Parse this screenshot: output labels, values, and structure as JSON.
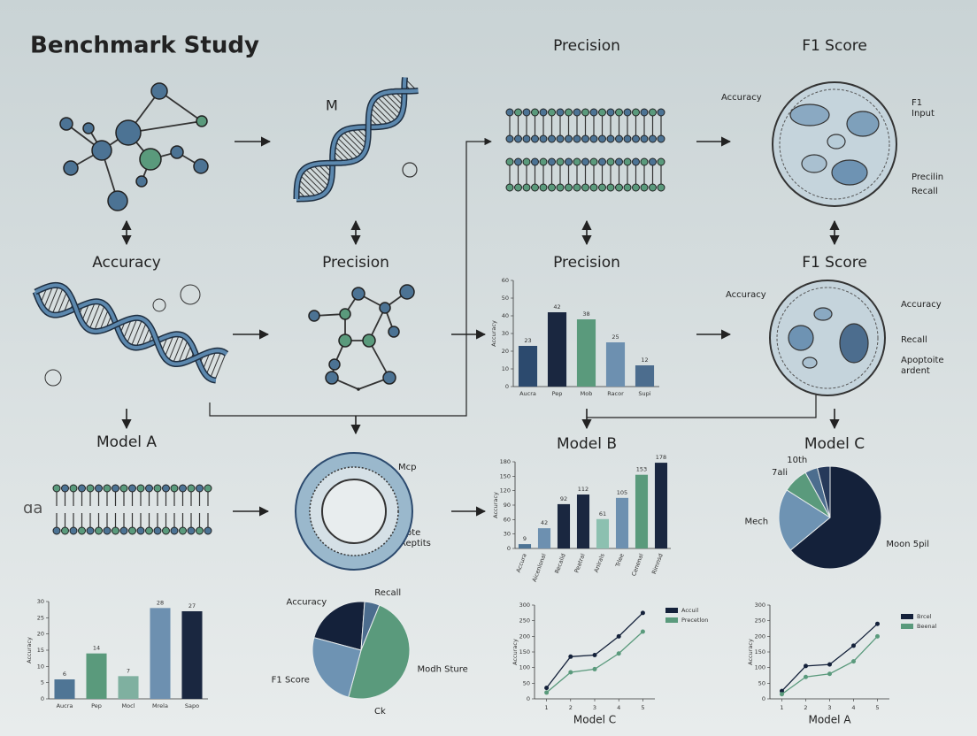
{
  "header": {
    "title": "Benchmark Study"
  },
  "labels": {
    "top_precision": "Precision",
    "top_f1": "F1 Score",
    "accuracy": "Accuracy",
    "precision_left": "Precision",
    "precision_right": "Precision",
    "f1_right": "F1 Score",
    "model_a": "Model A",
    "model_b": "Model B",
    "model_c": "Model C"
  },
  "annotations": {
    "dna_mark": "M",
    "side_mark": "ɑa",
    "cell_top": [
      "Accuracy",
      "F1",
      "Input",
      "Precilin",
      "Recall"
    ],
    "cell_mid": [
      "Accuracy",
      "Accuracy",
      "Recall",
      "Apoptoite",
      "ardent"
    ],
    "cell_membrane": [
      "Mcp",
      "Apte",
      "Reptits"
    ]
  },
  "chart_data": [
    {
      "type": "bar",
      "ylabel": "Accuracy",
      "categories": [
        "Aucra",
        "Pep",
        "Mob",
        "Racor",
        "Supi"
      ],
      "values": [
        23,
        42,
        38,
        25,
        12
      ],
      "colors": [
        "#2c4a6e",
        "#1a2740",
        "#5a9a7c",
        "#6d90b0",
        "#4c6d8e"
      ],
      "ylim": [
        0,
        60
      ],
      "yticks": [
        0,
        10,
        20,
        30,
        40,
        50,
        60
      ]
    },
    {
      "type": "bar",
      "ylabel": "Accuracy",
      "categories": [
        "Accura",
        "Aicenlonal",
        "Recalld",
        "Peatral",
        "Anlrals",
        "Trlee",
        "Cenenal",
        "Rimnsd"
      ],
      "values": [
        9,
        42,
        92,
        112,
        61,
        105,
        153,
        178
      ],
      "colors": [
        "#4c7394",
        "#6d90b0",
        "#1a2740",
        "#1a2740",
        "#8cc0b0",
        "#6d90b0",
        "#5a9a7c",
        "#1a2740"
      ],
      "ylim": [
        0,
        180
      ],
      "yticks": [
        0,
        30,
        60,
        90,
        120,
        150,
        180
      ]
    },
    {
      "type": "bar",
      "ylabel": "Accuracy",
      "categories": [
        "Aucra",
        "Pep",
        "Mocl",
        "Mrela",
        "Sapo"
      ],
      "values": [
        6,
        14,
        7,
        28,
        27
      ],
      "colors": [
        "#4f7595",
        "#5a9a7c",
        "#7fb0a0",
        "#6d90b0",
        "#1a2740"
      ],
      "ylim": [
        0,
        30
      ],
      "yticks": [
        0,
        5,
        10,
        15,
        20,
        25,
        30
      ]
    },
    {
      "type": "pie",
      "categories": [
        "Moon 5pil",
        "Mech",
        "7ali",
        "10th",
        null
      ],
      "values": [
        64,
        20,
        8,
        4,
        4
      ],
      "colors": [
        "#14213a",
        "#6e93b3",
        "#5a9a7c",
        "#4c6d8e",
        "#26395a"
      ]
    },
    {
      "type": "pie",
      "categories": [
        "Accuracy",
        "Recall",
        "Modh Sture",
        "F1 Score"
      ],
      "values": [
        22,
        5,
        48,
        25
      ],
      "colors": [
        "#14213a",
        "#4c6d8e",
        "#5a9a7c",
        "#6e93b3"
      ],
      "annotation": "Ck"
    },
    {
      "type": "line",
      "xlabel": "Model C",
      "ylabel": "Accuracy",
      "x": [
        1,
        2,
        3,
        4,
        5
      ],
      "xlim": [
        0.5,
        5.5
      ],
      "xticks": [
        1,
        2,
        3,
        4,
        5
      ],
      "ylim": [
        0,
        300
      ],
      "yticks": [
        0,
        50,
        100,
        150,
        200,
        250,
        300
      ],
      "series": [
        {
          "name": "Accuil",
          "color": "#14213a",
          "values": [
            35,
            135,
            140,
            200,
            275
          ]
        },
        {
          "name": "Precetlon",
          "color": "#5a9a7c",
          "values": [
            20,
            85,
            95,
            145,
            215
          ]
        }
      ]
    },
    {
      "type": "line",
      "xlabel": "Model A",
      "ylabel": "Accuracy",
      "x": [
        1,
        2,
        3,
        4,
        5
      ],
      "xlim": [
        0.5,
        5.5
      ],
      "xticks": [
        1,
        2,
        3,
        4,
        5
      ],
      "ylim": [
        0,
        300
      ],
      "yticks": [
        0,
        50,
        100,
        150,
        200,
        250,
        300
      ],
      "series": [
        {
          "name": "Brcel",
          "color": "#14213a",
          "values": [
            25,
            105,
            110,
            170,
            240
          ]
        },
        {
          "name": "Beenal",
          "color": "#5a9a7c",
          "values": [
            15,
            70,
            80,
            120,
            200
          ]
        }
      ]
    }
  ]
}
